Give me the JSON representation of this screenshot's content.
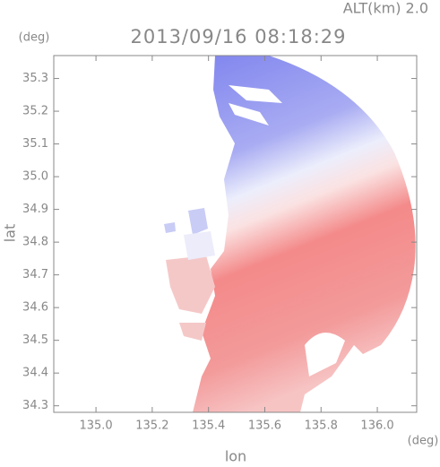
{
  "chart_data": {
    "type": "radar-image",
    "title": "2013/09/16 08:18:29",
    "annotation": "ALT(km) 2.0",
    "x_label": "lon",
    "x_unit": "(deg)",
    "y_label": "lat",
    "y_unit": "(deg)",
    "xlim": [
      134.85,
      136.14
    ],
    "xticks": [
      {
        "value": 135,
        "label": "135.0"
      },
      135.2,
      135.4,
      135.6,
      135.8,
      {
        "value": 136,
        "label": "136.0"
      }
    ],
    "ylim": [
      34.28,
      35.37
    ],
    "yticks": [
      {
        "value": 34.3,
        "label": "34.3"
      },
      34.4,
      34.5,
      34.6,
      34.7,
      34.8,
      34.9,
      {
        "value": 35,
        "label": "35.0"
      },
      35.1,
      35.2,
      35.3
    ]
  }
}
